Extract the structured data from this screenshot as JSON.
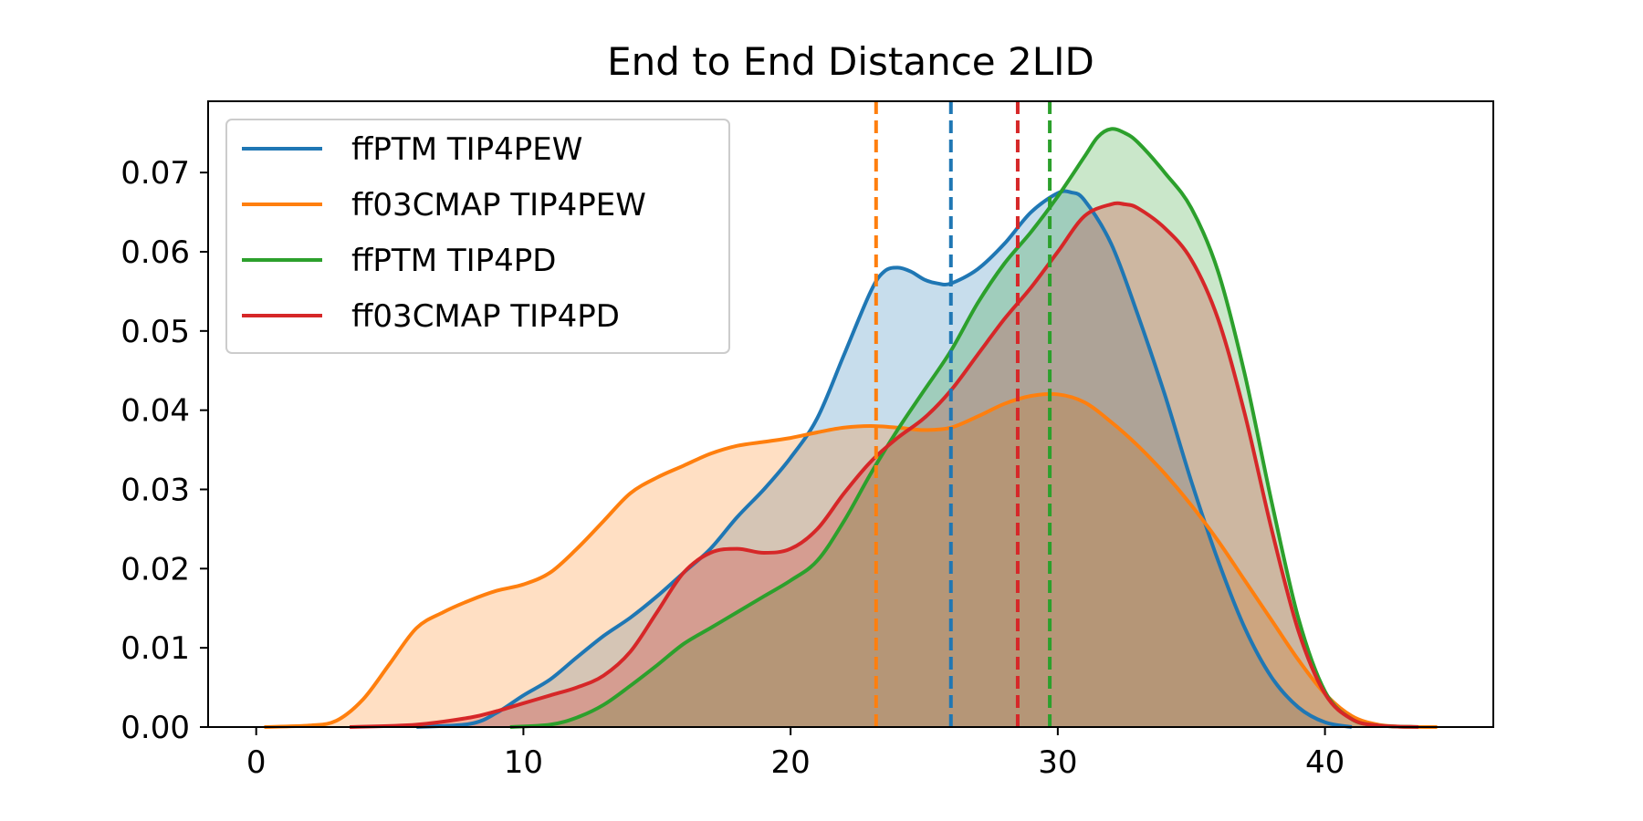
{
  "chart_data": {
    "type": "area",
    "title": "End to End Distance 2LID",
    "xlabel": "",
    "ylabel": "",
    "xlim": [
      -1.8,
      46.3
    ],
    "ylim": [
      0.0,
      0.079
    ],
    "xticks": [
      0,
      10,
      20,
      30,
      40
    ],
    "yticks": [
      0.0,
      0.01,
      0.02,
      0.03,
      0.04,
      0.05,
      0.06,
      0.07
    ],
    "xtick_labels": [
      "0",
      "10",
      "20",
      "30",
      "40"
    ],
    "ytick_labels": [
      "0.00",
      "0.01",
      "0.02",
      "0.03",
      "0.04",
      "0.05",
      "0.06",
      "0.07"
    ],
    "grid": false,
    "legend_position": "upper-left",
    "series": [
      {
        "name": "ffPTM TIP4PEW",
        "color": "#1f77b4",
        "mean": 26.0,
        "x": [
          6.0,
          8.0,
          9.0,
          10.0,
          11.0,
          12.0,
          13.0,
          14.0,
          15.0,
          16.0,
          17.0,
          18.0,
          19.0,
          20.0,
          21.0,
          22.0,
          23.0,
          23.5,
          24.0,
          24.5,
          25.0,
          25.5,
          26.0,
          27.0,
          28.0,
          29.0,
          30.0,
          30.5,
          31.0,
          32.0,
          33.0,
          34.0,
          35.0,
          36.0,
          37.0,
          38.0,
          39.0,
          40.0,
          41.0
        ],
        "y": [
          0.0,
          0.0004,
          0.0018,
          0.004,
          0.006,
          0.0088,
          0.0115,
          0.0138,
          0.0165,
          0.0195,
          0.0225,
          0.0265,
          0.03,
          0.034,
          0.039,
          0.047,
          0.055,
          0.0575,
          0.058,
          0.0575,
          0.0565,
          0.056,
          0.056,
          0.0578,
          0.061,
          0.065,
          0.0674,
          0.0675,
          0.0665,
          0.061,
          0.052,
          0.042,
          0.031,
          0.021,
          0.0125,
          0.0063,
          0.0025,
          0.0006,
          0.0
        ]
      },
      {
        "name": "ff03CMAP TIP4PEW",
        "color": "#ff7f0e",
        "mean": 23.2,
        "x": [
          0.3,
          2.0,
          3.0,
          4.0,
          5.0,
          6.0,
          7.0,
          8.0,
          9.0,
          10.0,
          11.0,
          12.0,
          13.0,
          14.0,
          15.0,
          16.0,
          17.0,
          18.0,
          19.0,
          20.0,
          21.0,
          22.0,
          23.0,
          24.0,
          25.0,
          26.0,
          27.0,
          28.0,
          29.0,
          30.0,
          31.0,
          32.0,
          33.0,
          34.0,
          35.0,
          36.0,
          37.0,
          38.0,
          39.0,
          40.0,
          41.0,
          42.0,
          43.0,
          44.2
        ],
        "y": [
          0.0,
          0.0002,
          0.0008,
          0.0035,
          0.008,
          0.0125,
          0.0145,
          0.016,
          0.0172,
          0.018,
          0.0195,
          0.0225,
          0.026,
          0.0295,
          0.0315,
          0.033,
          0.0345,
          0.0355,
          0.036,
          0.0365,
          0.0372,
          0.0378,
          0.038,
          0.0378,
          0.0375,
          0.0378,
          0.0392,
          0.0408,
          0.0418,
          0.042,
          0.041,
          0.0385,
          0.0355,
          0.032,
          0.028,
          0.0235,
          0.0185,
          0.0135,
          0.0085,
          0.0042,
          0.0014,
          0.0003,
          5e-05,
          0.0
        ]
      },
      {
        "name": "ffPTM TIP4PD",
        "color": "#2ca02c",
        "mean": 29.7,
        "x": [
          9.5,
          11.0,
          12.0,
          13.0,
          14.0,
          15.0,
          16.0,
          17.0,
          18.0,
          19.0,
          20.0,
          21.0,
          22.0,
          23.0,
          24.0,
          25.0,
          26.0,
          27.0,
          28.0,
          29.0,
          30.0,
          31.0,
          31.5,
          32.0,
          32.5,
          33.0,
          34.0,
          35.0,
          36.0,
          37.0,
          38.0,
          39.0,
          40.0,
          41.0,
          42.0,
          43.5
        ],
        "y": [
          0.0,
          0.0003,
          0.0012,
          0.0028,
          0.0052,
          0.0078,
          0.0105,
          0.0125,
          0.0145,
          0.0165,
          0.0185,
          0.021,
          0.026,
          0.032,
          0.0375,
          0.0425,
          0.0475,
          0.0535,
          0.0585,
          0.0625,
          0.067,
          0.072,
          0.0745,
          0.0755,
          0.075,
          0.0738,
          0.07,
          0.0655,
          0.0575,
          0.0445,
          0.0285,
          0.0138,
          0.0045,
          0.001,
          0.0002,
          0.0
        ]
      },
      {
        "name": "ff03CMAP TIP4PD",
        "color": "#d62728",
        "mean": 28.5,
        "x": [
          3.5,
          6.0,
          8.0,
          9.0,
          10.0,
          11.0,
          12.0,
          13.0,
          14.0,
          15.0,
          16.0,
          17.0,
          18.0,
          19.0,
          20.0,
          21.0,
          22.0,
          23.0,
          24.0,
          25.0,
          26.0,
          27.0,
          28.0,
          29.0,
          30.0,
          31.0,
          32.0,
          32.5,
          33.0,
          34.0,
          35.0,
          36.0,
          37.0,
          38.0,
          39.0,
          40.0,
          41.0,
          42.0,
          43.5
        ],
        "y": [
          0.0,
          0.0003,
          0.0012,
          0.002,
          0.003,
          0.004,
          0.005,
          0.0065,
          0.0095,
          0.0145,
          0.0195,
          0.022,
          0.0225,
          0.022,
          0.0225,
          0.025,
          0.0295,
          0.0335,
          0.0365,
          0.039,
          0.0425,
          0.047,
          0.0515,
          0.0555,
          0.06,
          0.0645,
          0.066,
          0.066,
          0.0655,
          0.063,
          0.059,
          0.0515,
          0.0395,
          0.025,
          0.0122,
          0.0042,
          0.001,
          0.0002,
          0.0
        ]
      }
    ]
  }
}
